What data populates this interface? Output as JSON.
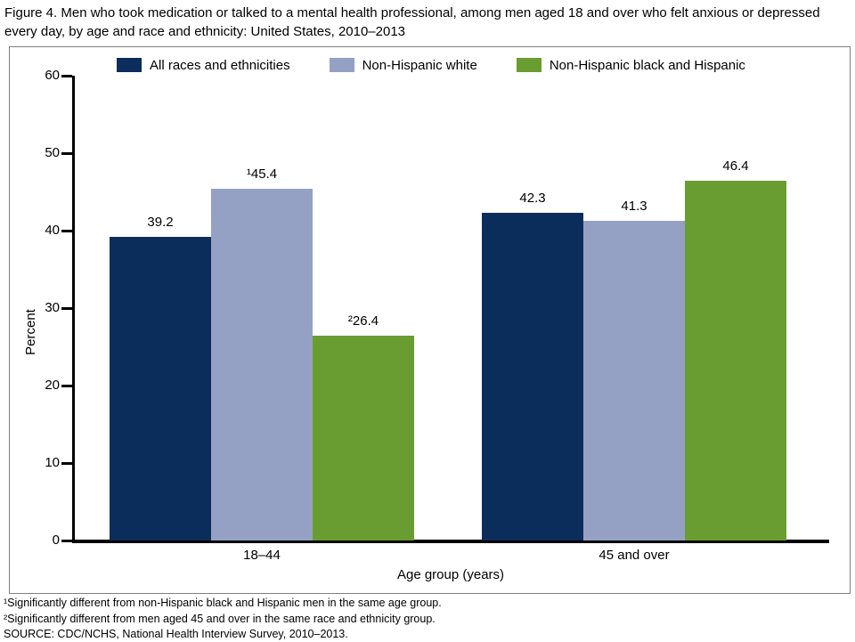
{
  "chart_data": {
    "type": "bar",
    "title": "Figure 4. Men who took medication or talked to a mental health professional, among men aged 18 and over who felt anxious or depressed every day, by age and race and ethnicity: United States, 2010–2013",
    "categories": [
      "18–44",
      "45 and over"
    ],
    "series": [
      {
        "name": "All races and ethnicities",
        "color": "#0b2d5b",
        "values": [
          39.2,
          42.3
        ],
        "labels": [
          "39.2",
          "42.3"
        ]
      },
      {
        "name": "Non-Hispanic white",
        "color": "#95a1c4",
        "values": [
          45.4,
          41.3
        ],
        "labels": [
          "¹45.4",
          "41.3"
        ]
      },
      {
        "name": "Non-Hispanic black and Hispanic",
        "color": "#6a9d31",
        "values": [
          26.4,
          46.4
        ],
        "labels": [
          "²26.4",
          "46.4"
        ]
      }
    ],
    "xlabel": "Age group (years)",
    "ylabel": "Percent",
    "ylim": [
      0,
      60
    ],
    "yticks": [
      0,
      10,
      20,
      30,
      40,
      50,
      60
    ],
    "legend_position": "top",
    "grid": false
  },
  "footnotes": [
    "¹Significantly different from non-Hispanic black and Hispanic men in the same age group.",
    "²Significantly different from men aged 45 and over in the same race and ethnicity group.",
    "SOURCE: CDC/NCHS, National Health Interview Survey, 2010–2013."
  ]
}
